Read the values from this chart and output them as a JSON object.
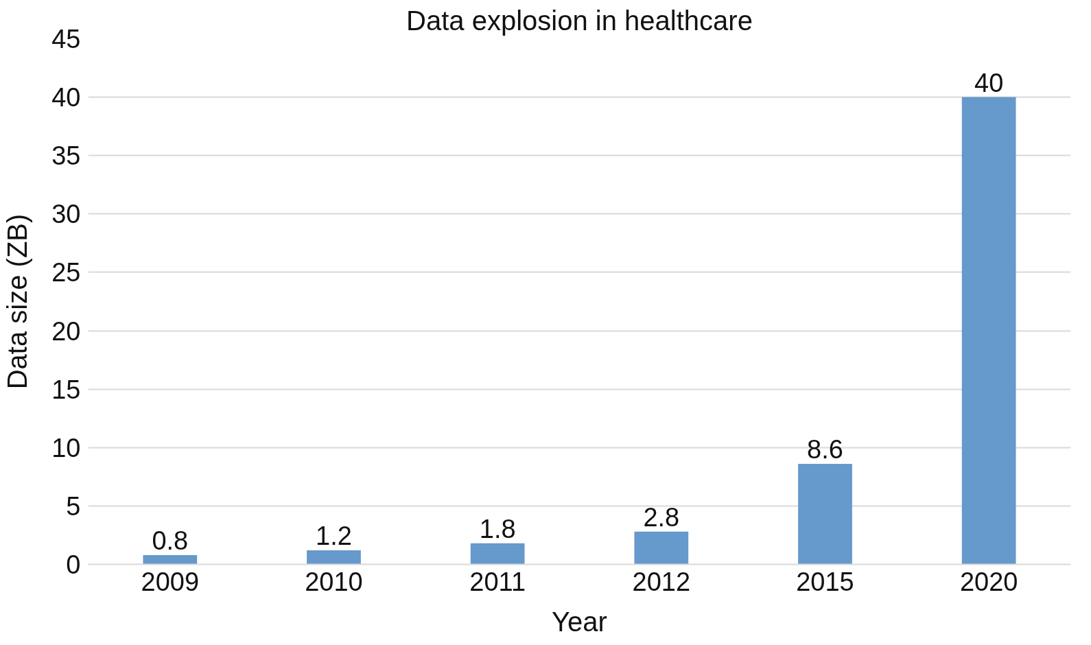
{
  "chart_data": {
    "type": "bar",
    "title": "Data explosion in healthcare",
    "xlabel": "Year",
    "ylabel": "Data size (ZB)",
    "categories": [
      "2009",
      "2010",
      "2011",
      "2012",
      "2015",
      "2020"
    ],
    "values": [
      0.8,
      1.2,
      1.8,
      2.8,
      8.6,
      40
    ],
    "color": "#6699cc",
    "ylim": [
      0,
      45
    ],
    "yticks": [
      0,
      5,
      10,
      15,
      20,
      25,
      30,
      35,
      40,
      45
    ],
    "grid": "y",
    "data_labels": true
  }
}
